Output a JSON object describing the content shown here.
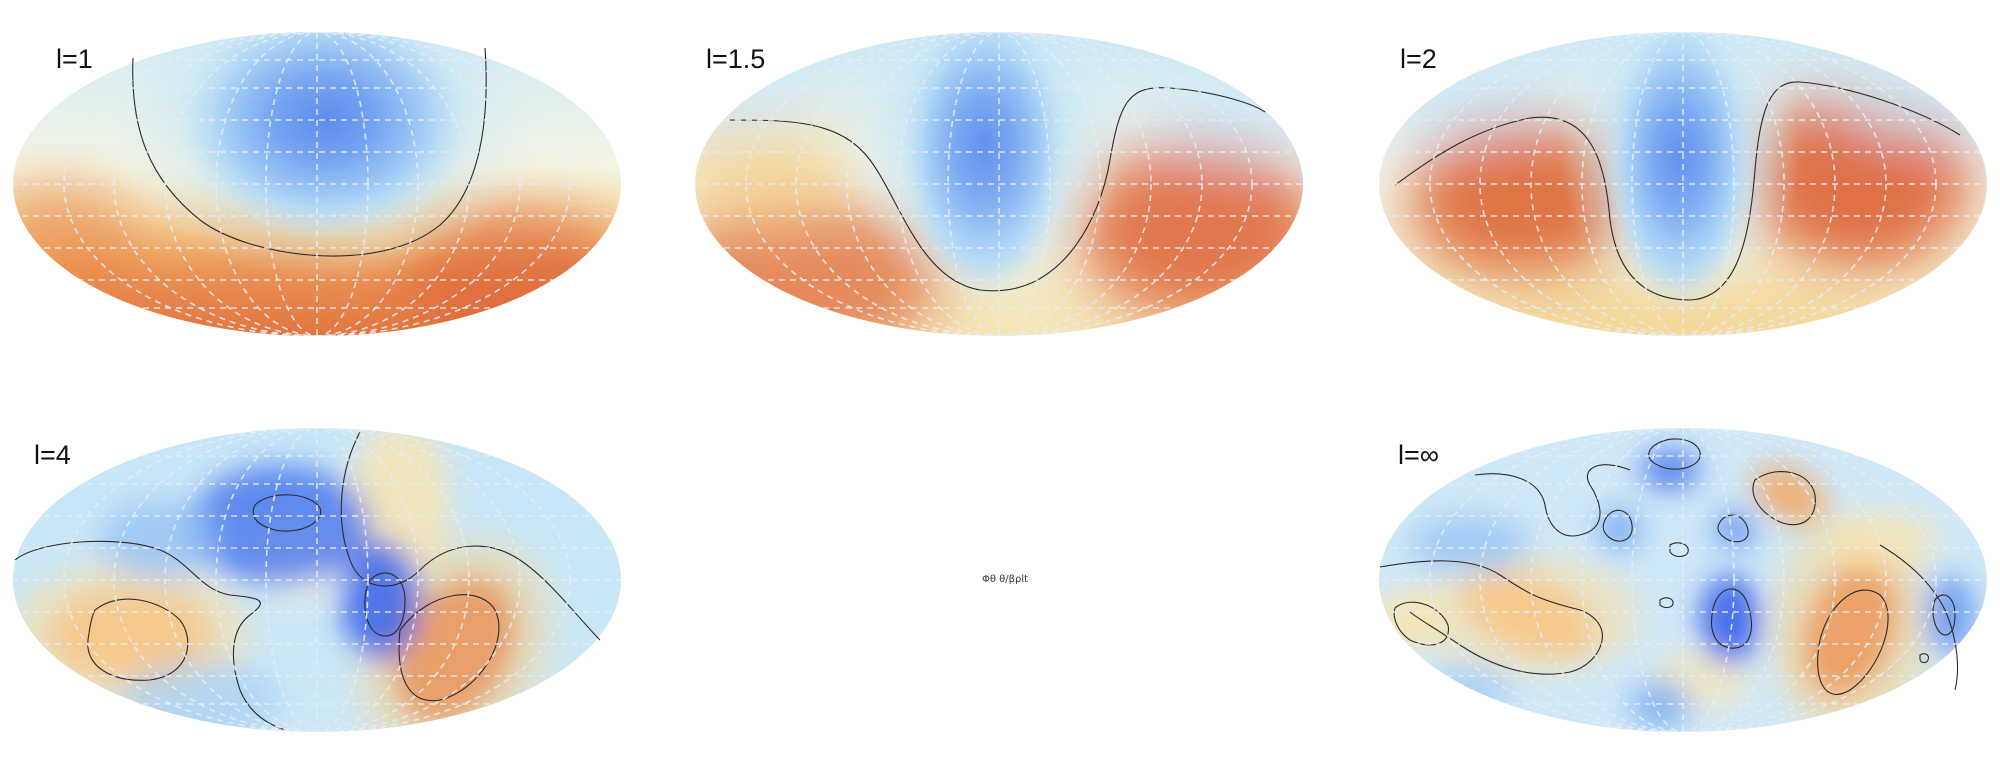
{
  "figure": {
    "center_label": "Φθ θ/βρlt",
    "colors": {
      "deep_blue": "#2d5bea",
      "blue": "#6fa7f2",
      "light_blue": "#bde4f7",
      "pale": "#f6f8e9",
      "yellow": "#fbe2a2",
      "orange": "#f0a35c",
      "deep_orange": "#dd5a2a",
      "grid": "#e6ecf6",
      "contour": "#2b2b2b"
    },
    "panels": [
      {
        "id": "l1",
        "label": "l=1"
      },
      {
        "id": "l15",
        "label": "l=1.5"
      },
      {
        "id": "l2",
        "label": "l=2"
      },
      {
        "id": "l4",
        "label": "l=4"
      },
      {
        "id": "linf",
        "label": "l=∞"
      }
    ]
  }
}
